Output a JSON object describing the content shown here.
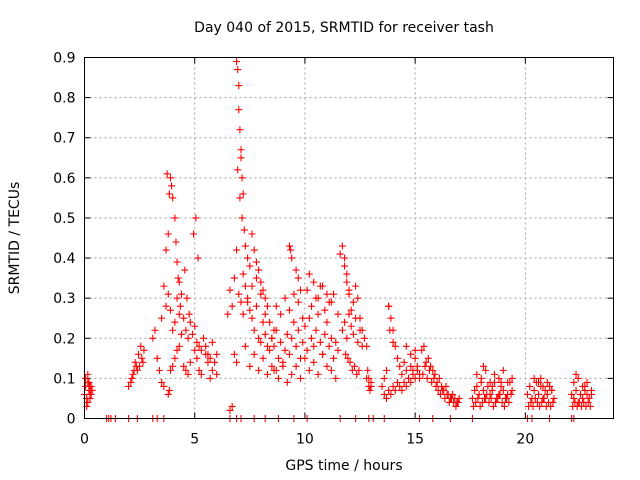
{
  "chart_data": {
    "type": "scatter",
    "title": "Day 040 of 2015, SRMTID for receiver tash",
    "xlabel": "GPS time / hours",
    "ylabel": "SRMTID / TECUs",
    "xlim": [
      0,
      24
    ],
    "ylim": [
      0,
      0.9
    ],
    "x_ticks": [
      0,
      5,
      10,
      15,
      20
    ],
    "x_tick_labels": [
      "0",
      "5",
      "10",
      "15",
      "20"
    ],
    "y_ticks": [
      0,
      0.1,
      0.2,
      0.3,
      0.4,
      0.5,
      0.6,
      0.7,
      0.8,
      0.9
    ],
    "y_tick_labels": [
      "0",
      "0.1",
      "0.2",
      "0.3",
      "0.4",
      "0.5",
      "0.6",
      "0.7",
      "0.8",
      "0.9"
    ],
    "grid": true,
    "marker": "+",
    "color": "#ff0000",
    "series": [
      {
        "name": "SRMTID",
        "x": [
          0.0,
          0.05,
          0.1,
          0.15,
          0.2,
          0.25,
          0.3,
          0.35,
          0.05,
          0.15,
          0.25,
          0.1,
          0.2,
          0.3,
          0.15,
          0.25,
          1.0,
          1.1,
          1.2,
          1.4,
          2.0,
          2.4,
          3.1,
          3.3,
          3.6,
          6.6,
          6.9,
          7.1,
          7.7,
          8.2,
          8.8,
          9.5,
          10.1,
          11.6,
          12.3,
          12.9,
          13.1,
          13.6,
          15.2,
          15.8,
          16.6,
          17.6,
          20.1,
          20.3,
          21.1,
          22.1,
          22.2,
          2.0,
          2.1,
          2.2,
          2.3,
          2.4,
          2.5,
          2.6,
          2.7,
          2.15,
          2.35,
          2.55,
          2.25,
          2.45,
          2.65,
          3.1,
          3.2,
          3.3,
          3.4,
          3.5,
          3.6,
          3.7,
          3.8,
          3.9,
          4.0,
          4.1,
          4.2,
          4.3,
          4.4,
          4.5,
          4.6,
          4.7,
          4.8,
          4.9,
          5.0,
          5.1,
          5.2,
          5.3,
          5.4,
          5.5,
          5.6,
          5.7,
          5.8,
          5.9,
          6.0,
          3.5,
          3.6,
          3.7,
          3.8,
          3.9,
          4.0,
          4.1,
          4.2,
          4.3,
          4.4,
          3.75,
          3.85,
          3.95,
          4.15,
          4.25,
          4.35,
          4.55,
          4.65,
          4.75,
          4.95,
          5.05,
          5.15,
          3.8,
          3.85,
          3.9,
          4.0,
          4.1,
          4.2,
          4.3,
          4.5,
          4.6,
          4.7,
          4.8,
          5.0,
          5.1,
          5.2,
          5.3,
          5.5,
          5.6,
          5.7,
          5.8,
          6.0,
          6.5,
          6.6,
          6.7,
          6.8,
          6.9,
          7.0,
          7.1,
          7.2,
          7.3,
          7.4,
          7.5,
          7.6,
          7.7,
          7.8,
          7.9,
          8.0,
          8.1,
          8.2,
          8.3,
          8.4,
          8.5,
          6.9,
          6.95,
          7.0,
          7.0,
          7.05,
          7.1,
          7.1,
          7.15,
          7.2,
          6.95,
          7.05,
          7.15,
          7.25,
          7.3,
          7.4,
          7.5,
          7.6,
          7.7,
          7.8,
          7.9,
          8.0,
          8.1,
          8.2,
          8.3,
          6.8,
          6.9,
          7.3,
          7.5,
          7.7,
          7.9,
          8.1,
          8.3,
          8.5,
          8.7,
          6.6,
          6.7,
          7.2,
          7.4,
          7.6,
          7.8,
          8.0,
          8.2,
          8.4,
          8.6,
          8.5,
          8.6,
          8.7,
          8.8,
          8.9,
          9.0,
          9.1,
          9.2,
          9.3,
          9.4,
          9.5,
          9.6,
          9.7,
          9.8,
          9.9,
          10.0,
          10.1,
          10.2,
          10.3,
          10.4,
          10.5,
          10.6,
          10.7,
          10.8,
          10.9,
          11.0,
          11.1,
          11.2,
          11.3,
          11.4,
          11.5,
          8.6,
          8.8,
          9.0,
          9.2,
          9.4,
          9.6,
          9.8,
          10.0,
          10.2,
          10.4,
          10.6,
          10.8,
          11.0,
          11.2,
          11.4,
          8.7,
          8.9,
          9.1,
          9.3,
          9.5,
          9.7,
          9.9,
          10.1,
          10.3,
          10.5,
          10.7,
          10.9,
          11.1,
          11.3,
          11.5,
          9.3,
          9.35,
          9.4,
          9.6,
          9.7,
          9.8,
          10.2,
          10.4,
          10.6,
          10.8,
          11.0,
          11.2,
          11.6,
          11.7,
          11.8,
          11.9,
          12.0,
          12.1,
          12.2,
          12.3,
          12.4,
          12.5,
          12.6,
          12.7,
          12.8,
          12.9,
          13.0,
          11.7,
          11.8,
          11.9,
          12.0,
          12.1,
          12.2,
          12.3,
          12.4,
          12.5,
          12.6,
          11.8,
          11.9,
          12.0,
          11.85,
          11.95,
          12.05,
          12.15,
          12.25,
          12.35,
          12.45,
          12.8,
          12.9,
          13.0,
          12.85,
          12.95,
          13.5,
          13.6,
          13.7,
          13.8,
          13.9,
          14.0,
          14.1,
          14.2,
          14.3,
          14.4,
          14.5,
          14.6,
          14.7,
          14.8,
          14.9,
          15.0,
          15.1,
          15.2,
          13.6,
          13.8,
          14.0,
          14.2,
          14.4,
          14.6,
          14.8,
          15.0,
          15.2,
          13.7,
          13.9,
          14.1,
          14.3,
          14.5,
          14.7,
          14.9,
          15.1,
          13.8,
          13.85,
          14.0,
          14.6,
          14.8,
          15.0,
          15.3,
          15.4,
          15.5,
          15.6,
          15.7,
          15.8,
          15.9,
          16.0,
          16.1,
          16.2,
          16.3,
          16.4,
          16.5,
          16.6,
          16.7,
          16.8,
          16.9,
          17.0,
          15.35,
          15.45,
          15.55,
          15.65,
          15.75,
          15.85,
          15.95,
          16.05,
          16.15,
          16.25,
          16.35,
          16.45,
          16.55,
          16.65,
          16.75,
          16.85,
          16.95,
          17.6,
          17.7,
          17.8,
          17.9,
          18.0,
          18.1,
          18.2,
          18.3,
          18.4,
          18.5,
          18.6,
          18.7,
          18.8,
          18.9,
          19.0,
          19.1,
          19.2,
          19.3,
          19.4,
          17.65,
          17.75,
          17.85,
          17.95,
          18.05,
          18.15,
          18.25,
          18.35,
          18.45,
          18.55,
          18.65,
          18.75,
          18.85,
          18.95,
          19.05,
          19.15,
          19.25,
          19.35,
          17.8,
          18.0,
          18.2,
          18.4,
          18.6,
          18.8,
          19.0,
          19.2,
          19.4,
          18.1,
          18.5,
          18.9,
          20.1,
          20.2,
          20.3,
          20.4,
          20.5,
          20.6,
          20.7,
          20.8,
          20.9,
          21.0,
          21.1,
          21.2,
          21.3,
          20.15,
          20.25,
          20.35,
          20.45,
          20.55,
          20.65,
          20.75,
          20.85,
          20.95,
          21.05,
          21.15,
          21.25,
          20.4,
          20.6,
          20.8,
          21.0,
          21.2,
          20.7,
          21.1,
          22.1,
          22.2,
          22.3,
          22.4,
          22.5,
          22.6,
          22.7,
          22.8,
          22.9,
          23.0,
          22.15,
          22.25,
          22.35,
          22.45,
          22.55,
          22.65,
          22.75,
          22.85,
          22.95,
          22.2,
          22.4,
          22.6,
          22.8,
          23.0,
          22.3,
          22.7
        ],
        "y": [
          0.06,
          0.08,
          0.05,
          0.09,
          0.07,
          0.06,
          0.08,
          0.07,
          0.1,
          0.04,
          0.05,
          0.03,
          0.09,
          0.06,
          0.11,
          0.08,
          0.0,
          0.0,
          0.0,
          0.0,
          0.0,
          0.0,
          0.0,
          0.0,
          0.0,
          0.0,
          0.0,
          0.0,
          0.0,
          0.0,
          0.0,
          0.0,
          0.0,
          0.0,
          0.0,
          0.0,
          0.0,
          0.0,
          0.0,
          0.0,
          0.0,
          0.0,
          0.0,
          0.0,
          0.0,
          0.0,
          0.0,
          0.08,
          0.09,
          0.11,
          0.14,
          0.12,
          0.13,
          0.15,
          0.17,
          0.1,
          0.13,
          0.18,
          0.12,
          0.16,
          0.14,
          0.2,
          0.22,
          0.15,
          0.12,
          0.25,
          0.33,
          0.28,
          0.31,
          0.27,
          0.22,
          0.24,
          0.3,
          0.26,
          0.21,
          0.25,
          0.22,
          0.2,
          0.24,
          0.21,
          0.23,
          0.19,
          0.18,
          0.17,
          0.2,
          0.18,
          0.16,
          0.15,
          0.19,
          0.14,
          0.16,
          0.09,
          0.08,
          0.42,
          0.46,
          0.6,
          0.55,
          0.5,
          0.39,
          0.34,
          0.31,
          0.61,
          0.56,
          0.58,
          0.44,
          0.35,
          0.28,
          0.37,
          0.3,
          0.26,
          0.46,
          0.5,
          0.4,
          0.06,
          0.07,
          0.12,
          0.13,
          0.15,
          0.17,
          0.18,
          0.13,
          0.12,
          0.11,
          0.14,
          0.17,
          0.15,
          0.12,
          0.11,
          0.16,
          0.14,
          0.1,
          0.12,
          0.11,
          0.26,
          0.32,
          0.28,
          0.35,
          0.42,
          0.31,
          0.29,
          0.36,
          0.33,
          0.3,
          0.27,
          0.25,
          0.22,
          0.28,
          0.2,
          0.19,
          0.24,
          0.21,
          0.18,
          0.17,
          0.2,
          0.89,
          0.87,
          0.83,
          0.77,
          0.72,
          0.67,
          0.65,
          0.6,
          0.56,
          0.62,
          0.55,
          0.5,
          0.47,
          0.43,
          0.4,
          0.38,
          0.46,
          0.42,
          0.39,
          0.37,
          0.34,
          0.32,
          0.3,
          0.28,
          0.16,
          0.14,
          0.18,
          0.13,
          0.16,
          0.12,
          0.15,
          0.11,
          0.13,
          0.12,
          0.02,
          0.03,
          0.26,
          0.29,
          0.33,
          0.35,
          0.31,
          0.26,
          0.24,
          0.22,
          0.2,
          0.18,
          0.22,
          0.15,
          0.19,
          0.13,
          0.17,
          0.21,
          0.16,
          0.2,
          0.24,
          0.18,
          0.22,
          0.15,
          0.19,
          0.23,
          0.17,
          0.25,
          0.2,
          0.18,
          0.22,
          0.26,
          0.19,
          0.16,
          0.21,
          0.24,
          0.18,
          0.2,
          0.15,
          0.19,
          0.17,
          0.12,
          0.1,
          0.14,
          0.09,
          0.11,
          0.13,
          0.1,
          0.15,
          0.12,
          0.14,
          0.11,
          0.16,
          0.13,
          0.12,
          0.1,
          0.28,
          0.26,
          0.3,
          0.27,
          0.31,
          0.29,
          0.25,
          0.32,
          0.28,
          0.3,
          0.33,
          0.27,
          0.29,
          0.31,
          0.26,
          0.43,
          0.42,
          0.4,
          0.37,
          0.35,
          0.32,
          0.36,
          0.34,
          0.3,
          0.33,
          0.31,
          0.29,
          0.41,
          0.43,
          0.38,
          0.34,
          0.31,
          0.27,
          0.29,
          0.33,
          0.3,
          0.25,
          0.22,
          0.2,
          0.18,
          0.1,
          0.08,
          0.22,
          0.24,
          0.2,
          0.26,
          0.23,
          0.21,
          0.25,
          0.19,
          0.22,
          0.18,
          0.4,
          0.36,
          0.32,
          0.16,
          0.15,
          0.14,
          0.12,
          0.13,
          0.11,
          0.12,
          0.1,
          0.08,
          0.09,
          0.12,
          0.07,
          0.08,
          0.1,
          0.12,
          0.28,
          0.25,
          0.22,
          0.18,
          0.15,
          0.13,
          0.11,
          0.14,
          0.12,
          0.1,
          0.13,
          0.11,
          0.15,
          0.12,
          0.1,
          0.06,
          0.07,
          0.08,
          0.09,
          0.07,
          0.08,
          0.09,
          0.1,
          0.11,
          0.05,
          0.06,
          0.07,
          0.08,
          0.09,
          0.1,
          0.12,
          0.13,
          0.28,
          0.22,
          0.19,
          0.18,
          0.16,
          0.17,
          0.17,
          0.18,
          0.14,
          0.15,
          0.13,
          0.12,
          0.11,
          0.09,
          0.1,
          0.08,
          0.07,
          0.08,
          0.06,
          0.05,
          0.06,
          0.05,
          0.04,
          0.05,
          0.11,
          0.13,
          0.1,
          0.12,
          0.09,
          0.1,
          0.08,
          0.07,
          0.06,
          0.07,
          0.05,
          0.06,
          0.04,
          0.05,
          0.04,
          0.03,
          0.04,
          0.05,
          0.07,
          0.08,
          0.06,
          0.09,
          0.07,
          0.05,
          0.08,
          0.06,
          0.07,
          0.09,
          0.05,
          0.06,
          0.08,
          0.07,
          0.05,
          0.06,
          0.09,
          0.07,
          0.03,
          0.04,
          0.05,
          0.03,
          0.04,
          0.05,
          0.06,
          0.04,
          0.05,
          0.03,
          0.04,
          0.05,
          0.06,
          0.04,
          0.03,
          0.05,
          0.04,
          0.06,
          0.11,
          0.1,
          0.12,
          0.09,
          0.11,
          0.1,
          0.12,
          0.09,
          0.1,
          0.13,
          0.08,
          0.09,
          0.06,
          0.08,
          0.05,
          0.07,
          0.09,
          0.06,
          0.08,
          0.05,
          0.07,
          0.06,
          0.08,
          0.07,
          0.05,
          0.03,
          0.04,
          0.03,
          0.05,
          0.04,
          0.03,
          0.04,
          0.05,
          0.03,
          0.04,
          0.03,
          0.04,
          0.1,
          0.09,
          0.08,
          0.09,
          0.07,
          0.1,
          0.08,
          0.06,
          0.05,
          0.07,
          0.04,
          0.06,
          0.05,
          0.07,
          0.06,
          0.05,
          0.06,
          0.03,
          0.04,
          0.03,
          0.04,
          0.03,
          0.04,
          0.03,
          0.04,
          0.03,
          0.09,
          0.1,
          0.08,
          0.09,
          0.07,
          0.11,
          0.08
        ]
      }
    ]
  }
}
